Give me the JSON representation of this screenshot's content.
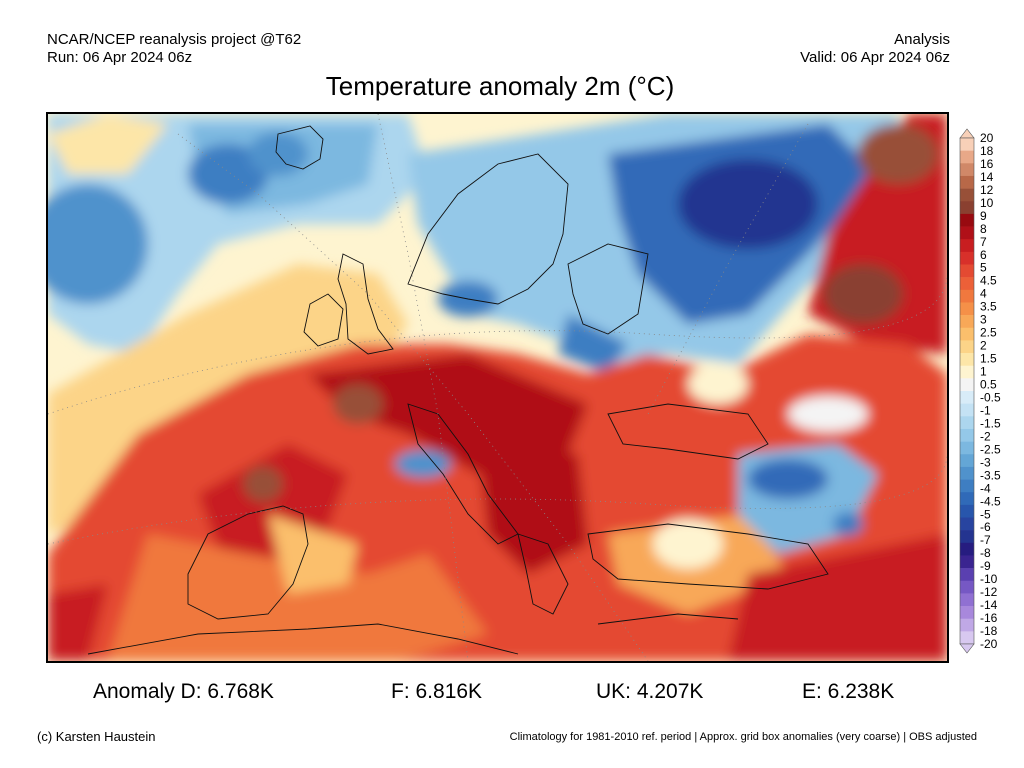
{
  "header": {
    "project": "NCAR/NCEP reanalysis project @T62",
    "run": "Run: 06 Apr 2024 06z",
    "type": "Analysis",
    "valid": "Valid: 06 Apr 2024 06z"
  },
  "title": "Temperature anomaly 2m (°C)",
  "colorbar": {
    "labels": [
      "20",
      "18",
      "16",
      "14",
      "12",
      "10",
      "9",
      "8",
      "7",
      "6",
      "5",
      "4.5",
      "4",
      "3.5",
      "3",
      "2.5",
      "2",
      "1.5",
      "1",
      "0.5",
      "-0.5",
      "-1",
      "-1.5",
      "-2",
      "-2.5",
      "-3",
      "-3.5",
      "-4",
      "-4.5",
      "-5",
      "-6",
      "-7",
      "-8",
      "-9",
      "-10",
      "-12",
      "-14",
      "-16",
      "-18",
      "-20"
    ],
    "colors": [
      "#f8d0b8",
      "#e8a888",
      "#d08868",
      "#b86848",
      "#985038",
      "#8a4030",
      "#980a10",
      "#b01018",
      "#c81e20",
      "#d8302a",
      "#e44a32",
      "#ec6038",
      "#f0783e",
      "#f59048",
      "#f8a858",
      "#fbbf6c",
      "#fcd488",
      "#fde6a8",
      "#fef4d0",
      "#f4f4f4",
      "#d8ecf8",
      "#c4e2f4",
      "#acd6ee",
      "#94c8e8",
      "#7cb8e0",
      "#64a6d6",
      "#5092cc",
      "#3e7ec2",
      "#306ab8",
      "#2856ac",
      "#2844a0",
      "#243490",
      "#261c80",
      "#3a2490",
      "#5a40b0",
      "#7658c4",
      "#9070d2",
      "#a888dc",
      "#c0a8e6",
      "#d8c8f0"
    ]
  },
  "stats": {
    "anomaly_d": "Anomaly D: 6.768K",
    "f": "F: 6.816K",
    "uk": "UK: 4.207K",
    "e": "E: 6.238K"
  },
  "footer": {
    "credit": "(c) Karsten Haustein",
    "note": "Climatology for 1981-2010 ref. period | Approx. grid box anomalies (very coarse) | OBS adjusted"
  }
}
